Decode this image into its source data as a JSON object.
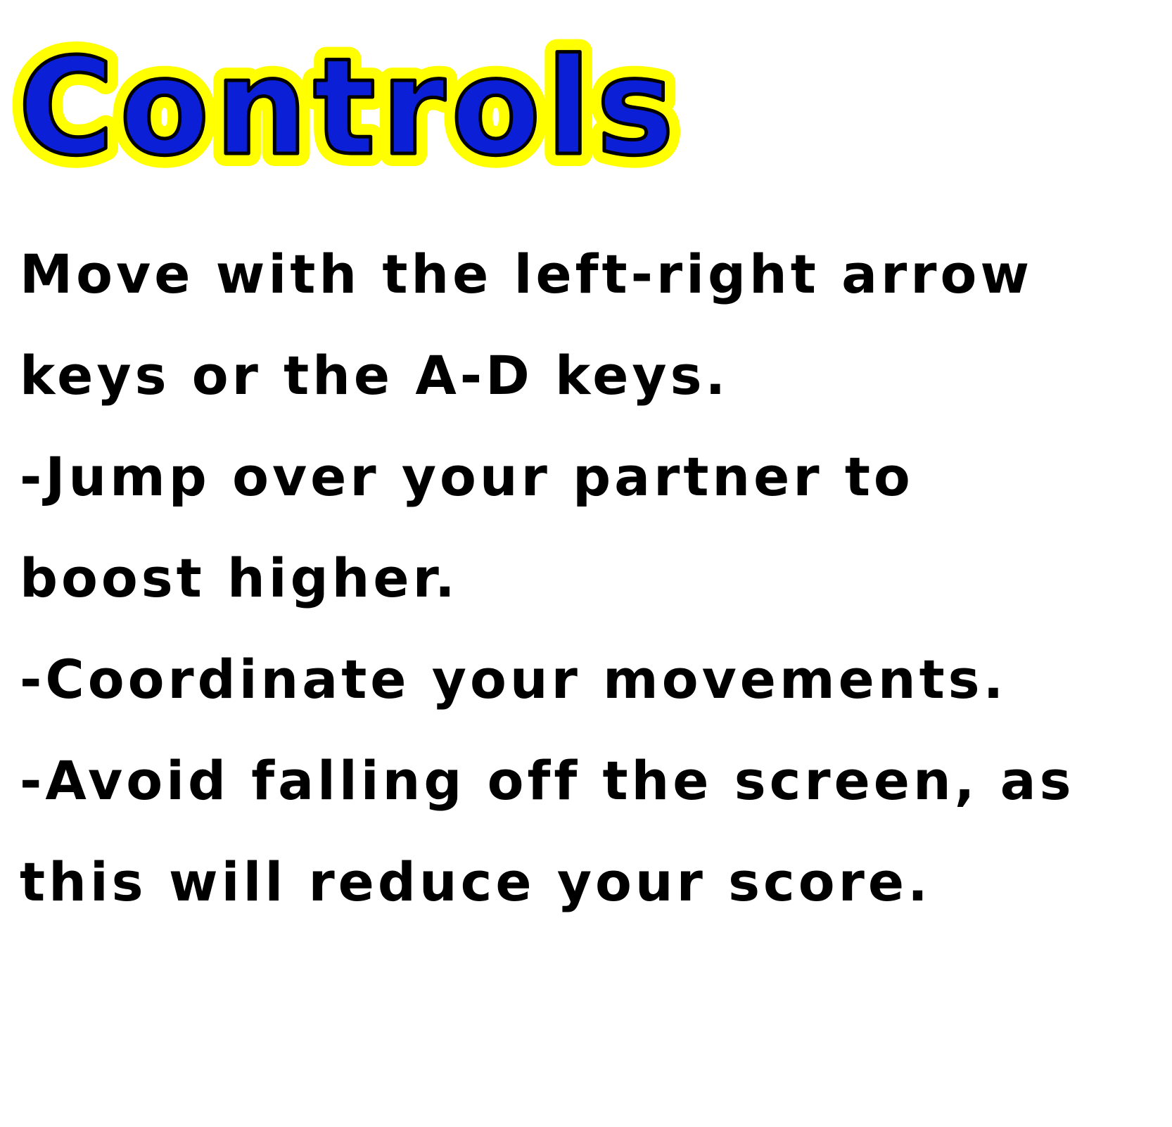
{
  "screen": {
    "title": "Controls",
    "title_fill_color": "#0a1fd6",
    "title_outline_color": "#ffff00",
    "text_color": "#000000",
    "background_color": "#ffffff",
    "instructions": [
      "Move with the left-right arrow",
      "keys or the A-D keys.",
      "-Jump over your partner to",
      "boost higher.",
      "-Coordinate your movements.",
      "-Avoid falling off the screen, as",
      "this will reduce your score."
    ]
  }
}
